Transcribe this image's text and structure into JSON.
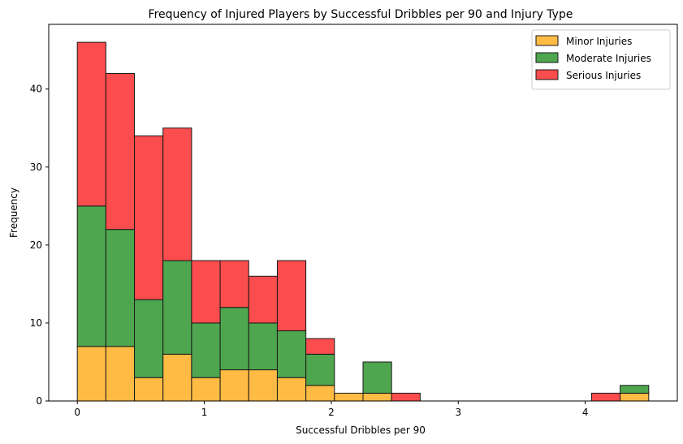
{
  "chart_data": {
    "type": "bar",
    "stacked": true,
    "title": "Frequency of Injured Players by Successful Dribbles per 90 and Injury Type",
    "xlabel": "Successful Dribbles per 90",
    "ylabel": "Frequency",
    "xlim": [
      -0.225,
      4.725
    ],
    "ylim": [
      0,
      48.3
    ],
    "xticks": [
      0,
      1,
      2,
      3,
      4
    ],
    "yticks": [
      0,
      10,
      20,
      30,
      40
    ],
    "bin_edges": [
      0,
      0.225,
      0.45,
      0.675,
      0.9,
      1.125,
      1.35,
      1.575,
      1.8,
      2.025,
      2.25,
      2.475,
      2.7,
      2.925,
      3.15,
      3.375,
      3.6,
      3.825,
      4.05,
      4.275,
      4.5
    ],
    "legend_position": "top-right",
    "grid": false,
    "series": [
      {
        "name": "Minor Injuries",
        "color": "#ffbb44",
        "values": [
          7,
          7,
          3,
          6,
          3,
          4,
          4,
          3,
          2,
          1,
          1,
          0,
          0,
          0,
          0,
          0,
          0,
          0,
          0,
          1
        ]
      },
      {
        "name": "Moderate Injuries",
        "color": "#4ea64e",
        "values": [
          18,
          15,
          10,
          12,
          7,
          8,
          6,
          6,
          4,
          0,
          4,
          0,
          0,
          0,
          0,
          0,
          0,
          0,
          0,
          1
        ]
      },
      {
        "name": "Serious Injuries",
        "color": "#fb4c4e",
        "values": [
          21,
          20,
          21,
          17,
          8,
          6,
          6,
          9,
          2,
          0,
          0,
          1,
          0,
          0,
          0,
          0,
          0,
          0,
          1,
          0
        ]
      }
    ]
  }
}
